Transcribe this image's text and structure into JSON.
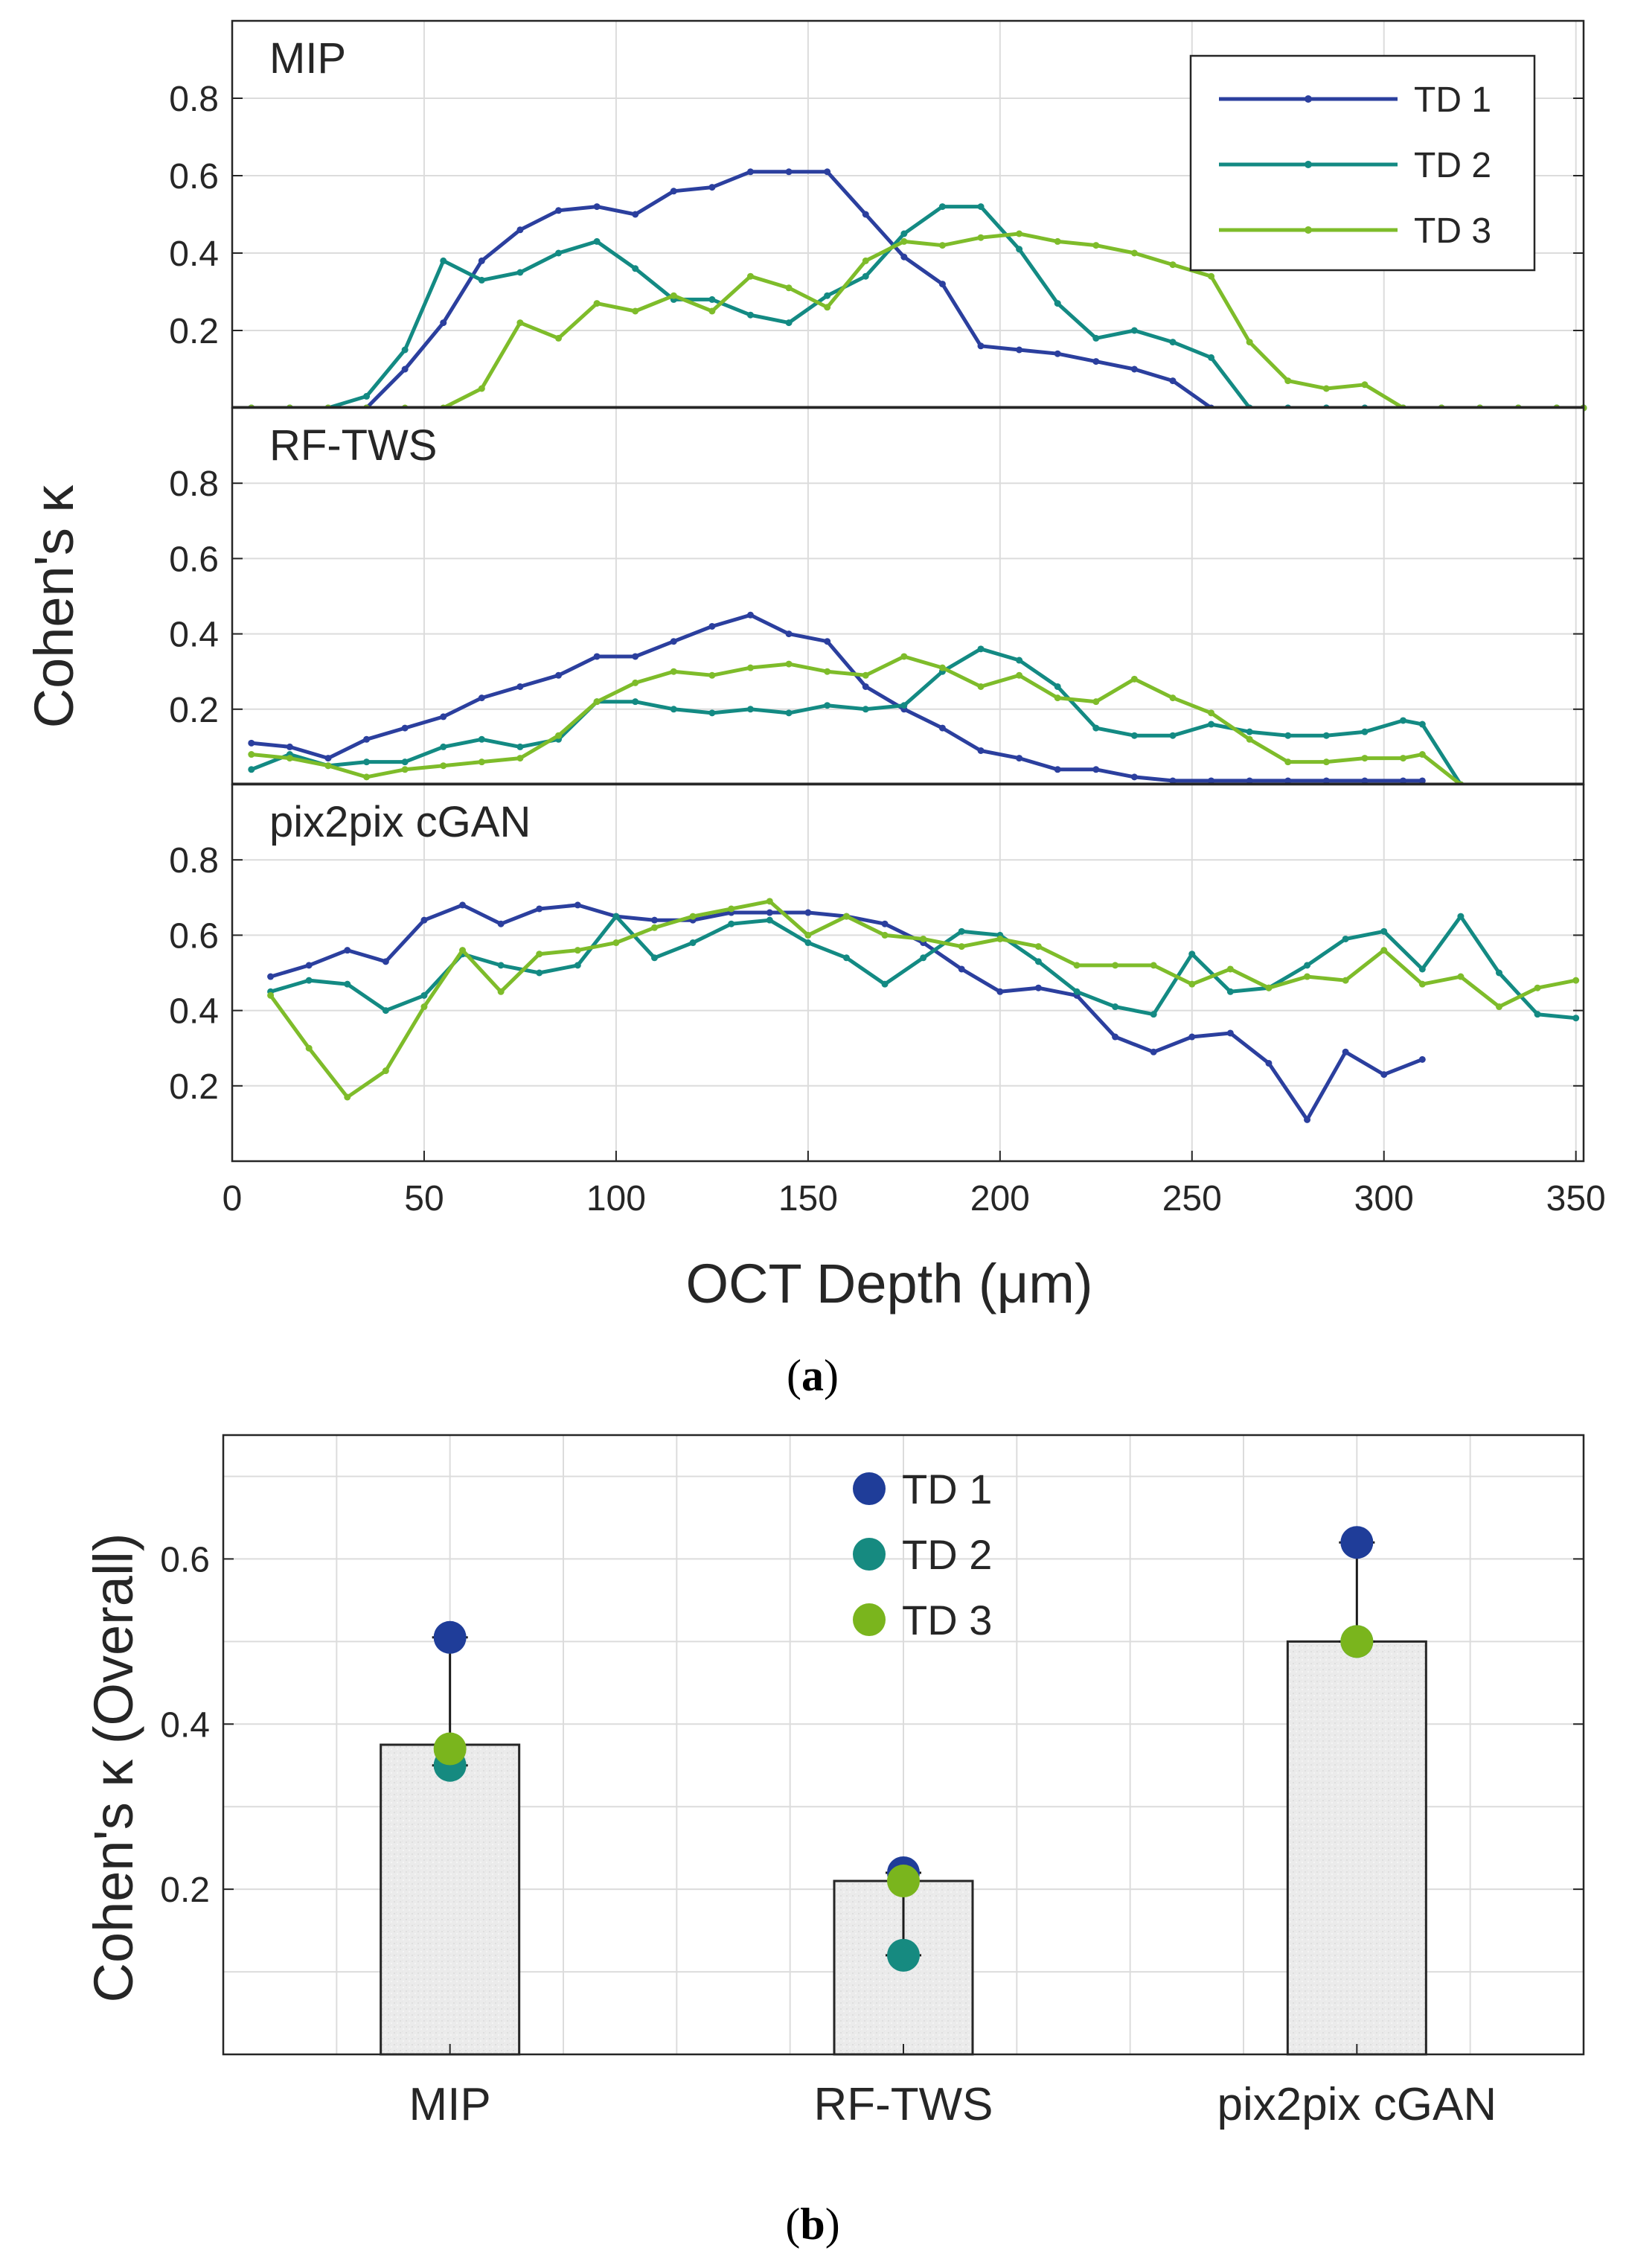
{
  "chart_data": [
    {
      "type": "line",
      "id": "a",
      "ylabel": "Cohen's κ",
      "xlabel": "OCT Depth (μm)",
      "xlim": [
        0,
        352
      ],
      "xticks": [
        0,
        50,
        100,
        150,
        200,
        250,
        300,
        350
      ],
      "yticks": [
        0.2,
        0.4,
        0.6,
        0.8
      ],
      "ylim": [
        0,
        1.0
      ],
      "grid": true,
      "legend": {
        "position": "top-right",
        "entries": [
          "TD 1",
          "TD 2",
          "TD 3"
        ]
      },
      "series_colors": {
        "TD 1": "#2b3f9e",
        "TD 2": "#138a83",
        "TD 3": "#7ebc2a"
      },
      "panels": [
        {
          "title": "MIP",
          "series": [
            {
              "name": "TD 1",
              "x": [
                5,
                15,
                25,
                35,
                45,
                55,
                65,
                75,
                85,
                95,
                105,
                115,
                125,
                135,
                145,
                155,
                165,
                175,
                185,
                195,
                205,
                215,
                225,
                235,
                245,
                255,
                265,
                275,
                285,
                295,
                305,
                315,
                325,
                335,
                345,
                352
              ],
              "values": [
                0,
                0,
                0,
                0,
                0.1,
                0.22,
                0.38,
                0.46,
                0.51,
                0.52,
                0.5,
                0.56,
                0.57,
                0.61,
                0.61,
                0.61,
                0.5,
                0.39,
                0.32,
                0.16,
                0.15,
                0.14,
                0.12,
                0.1,
                0.07,
                0,
                0,
                0,
                0,
                0,
                0,
                0,
                0,
                0,
                0,
                0
              ]
            },
            {
              "name": "TD 2",
              "x": [
                5,
                15,
                25,
                35,
                45,
                55,
                65,
                75,
                85,
                95,
                105,
                115,
                125,
                135,
                145,
                155,
                165,
                175,
                185,
                195,
                205,
                215,
                225,
                235,
                245,
                255,
                265,
                275,
                285,
                295,
                305,
                315,
                325,
                335,
                345,
                352
              ],
              "values": [
                0,
                0,
                0,
                0.03,
                0.15,
                0.38,
                0.33,
                0.35,
                0.4,
                0.43,
                0.36,
                0.28,
                0.28,
                0.24,
                0.22,
                0.29,
                0.34,
                0.45,
                0.52,
                0.52,
                0.41,
                0.27,
                0.18,
                0.2,
                0.17,
                0.13,
                0,
                0,
                0,
                0,
                0,
                0,
                0,
                0,
                0,
                0
              ]
            },
            {
              "name": "TD 3",
              "x": [
                5,
                15,
                25,
                35,
                45,
                55,
                65,
                75,
                85,
                95,
                105,
                115,
                125,
                135,
                145,
                155,
                165,
                175,
                185,
                195,
                205,
                215,
                225,
                235,
                245,
                255,
                265,
                275,
                285,
                295,
                305,
                315,
                325,
                335,
                345,
                352
              ],
              "values": [
                0,
                0,
                0,
                0,
                0,
                0,
                0.05,
                0.22,
                0.18,
                0.27,
                0.25,
                0.29,
                0.25,
                0.34,
                0.31,
                0.26,
                0.38,
                0.43,
                0.42,
                0.44,
                0.45,
                0.43,
                0.42,
                0.4,
                0.37,
                0.34,
                0.17,
                0.07,
                0.05,
                0.06,
                0,
                0,
                0,
                0,
                0,
                0
              ]
            }
          ]
        },
        {
          "title": "RF-TWS",
          "series": [
            {
              "name": "TD 1",
              "x": [
                5,
                15,
                25,
                35,
                45,
                55,
                65,
                75,
                85,
                95,
                105,
                115,
                125,
                135,
                145,
                155,
                165,
                175,
                185,
                195,
                205,
                215,
                225,
                235,
                245,
                255,
                265,
                275,
                285,
                295,
                305,
                310
              ],
              "values": [
                0.11,
                0.1,
                0.07,
                0.12,
                0.15,
                0.18,
                0.23,
                0.26,
                0.29,
                0.34,
                0.34,
                0.38,
                0.42,
                0.45,
                0.4,
                0.38,
                0.26,
                0.2,
                0.15,
                0.09,
                0.07,
                0.04,
                0.04,
                0.02,
                0.01,
                0.01,
                0.01,
                0.01,
                0.01,
                0.01,
                0.01,
                0.01
              ]
            },
            {
              "name": "TD 2",
              "x": [
                5,
                15,
                25,
                35,
                45,
                55,
                65,
                75,
                85,
                95,
                105,
                115,
                125,
                135,
                145,
                155,
                165,
                175,
                185,
                195,
                205,
                215,
                225,
                235,
                245,
                255,
                265,
                275,
                285,
                295,
                305,
                310,
                320
              ],
              "values": [
                0.04,
                0.08,
                0.05,
                0.06,
                0.06,
                0.1,
                0.12,
                0.1,
                0.12,
                0.22,
                0.22,
                0.2,
                0.19,
                0.2,
                0.19,
                0.21,
                0.2,
                0.21,
                0.3,
                0.36,
                0.33,
                0.26,
                0.15,
                0.13,
                0.13,
                0.16,
                0.14,
                0.13,
                0.13,
                0.14,
                0.17,
                0.16,
                0
              ]
            },
            {
              "name": "TD 3",
              "x": [
                5,
                15,
                25,
                35,
                45,
                55,
                65,
                75,
                85,
                95,
                105,
                115,
                125,
                135,
                145,
                155,
                165,
                175,
                185,
                195,
                205,
                215,
                225,
                235,
                245,
                255,
                265,
                275,
                285,
                295,
                305,
                310,
                320
              ],
              "values": [
                0.08,
                0.07,
                0.05,
                0.02,
                0.04,
                0.05,
                0.06,
                0.07,
                0.13,
                0.22,
                0.27,
                0.3,
                0.29,
                0.31,
                0.32,
                0.3,
                0.29,
                0.34,
                0.31,
                0.26,
                0.29,
                0.23,
                0.22,
                0.28,
                0.23,
                0.19,
                0.12,
                0.06,
                0.06,
                0.07,
                0.07,
                0.08,
                0
              ]
            }
          ]
        },
        {
          "title": "pix2pix cGAN",
          "series": [
            {
              "name": "TD 1",
              "x": [
                10,
                20,
                30,
                40,
                50,
                60,
                70,
                80,
                90,
                100,
                110,
                120,
                130,
                140,
                150,
                160,
                170,
                180,
                190,
                200,
                210,
                220,
                230,
                240,
                250,
                260,
                270,
                280,
                290,
                300,
                310
              ],
              "values": [
                0.49,
                0.52,
                0.56,
                0.53,
                0.64,
                0.68,
                0.63,
                0.67,
                0.68,
                0.65,
                0.64,
                0.64,
                0.66,
                0.66,
                0.66,
                0.65,
                0.63,
                0.58,
                0.51,
                0.45,
                0.46,
                0.44,
                0.33,
                0.29,
                0.33,
                0.34,
                0.26,
                0.11,
                0.29,
                0.23,
                0.27
              ]
            },
            {
              "name": "TD 2",
              "x": [
                10,
                20,
                30,
                40,
                50,
                60,
                70,
                80,
                90,
                100,
                110,
                120,
                130,
                140,
                150,
                160,
                170,
                180,
                190,
                200,
                210,
                220,
                230,
                240,
                250,
                260,
                270,
                280,
                290,
                300,
                310,
                320,
                330,
                340,
                350
              ],
              "values": [
                0.45,
                0.48,
                0.47,
                0.4,
                0.44,
                0.55,
                0.52,
                0.5,
                0.52,
                0.65,
                0.54,
                0.58,
                0.63,
                0.64,
                0.58,
                0.54,
                0.47,
                0.54,
                0.61,
                0.6,
                0.53,
                0.45,
                0.41,
                0.39,
                0.55,
                0.45,
                0.46,
                0.52,
                0.59,
                0.61,
                0.51,
                0.65,
                0.5,
                0.39,
                0.38
              ]
            },
            {
              "name": "TD 3",
              "x": [
                10,
                20,
                30,
                40,
                50,
                60,
                70,
                80,
                90,
                100,
                110,
                120,
                130,
                140,
                150,
                160,
                170,
                180,
                190,
                200,
                210,
                220,
                230,
                240,
                250,
                260,
                270,
                280,
                290,
                300,
                310,
                320,
                330,
                340,
                350
              ],
              "values": [
                0.44,
                0.3,
                0.17,
                0.24,
                0.41,
                0.56,
                0.45,
                0.55,
                0.56,
                0.58,
                0.62,
                0.65,
                0.67,
                0.69,
                0.6,
                0.65,
                0.6,
                0.59,
                0.57,
                0.59,
                0.57,
                0.52,
                0.52,
                0.52,
                0.47,
                0.51,
                0.46,
                0.49,
                0.48,
                0.56,
                0.47,
                0.49,
                0.41,
                0.46,
                0.48
              ]
            }
          ]
        }
      ],
      "caption": "a"
    },
    {
      "type": "bar",
      "id": "b",
      "ylabel": "Cohen's κ (Overall)",
      "categories": [
        "MIP",
        "RF-TWS",
        "pix2pix cGAN"
      ],
      "values": [
        0.375,
        0.21,
        0.5
      ],
      "points": [
        {
          "name": "TD 1",
          "values": [
            0.505,
            0.22,
            0.62
          ],
          "color": "#1f3d99"
        },
        {
          "name": "TD 2",
          "values": [
            0.35,
            0.12,
            0.5
          ],
          "color": "#168a80"
        },
        {
          "name": "TD 3",
          "values": [
            0.37,
            0.21,
            0.5
          ],
          "color": "#7ab51d"
        }
      ],
      "ylim": [
        0,
        0.75
      ],
      "yticks": [
        0.2,
        0.4,
        0.6
      ],
      "grid": true,
      "legend": {
        "position": "top-center",
        "entries": [
          "TD 1",
          "TD 2",
          "TD 3"
        ]
      },
      "caption": "b"
    }
  ]
}
